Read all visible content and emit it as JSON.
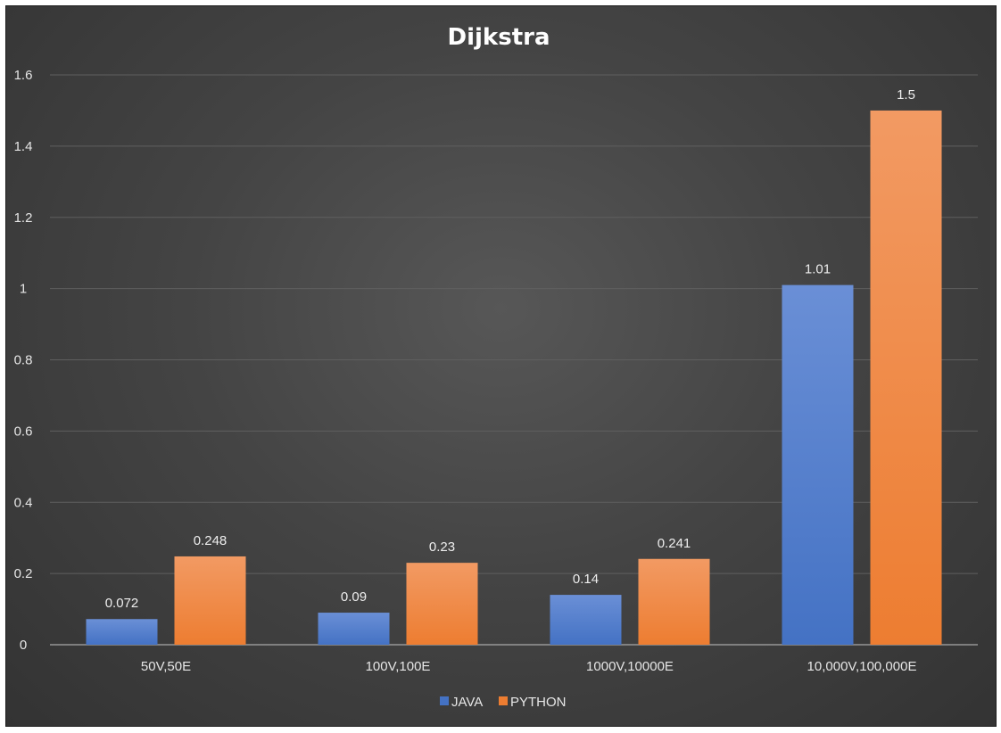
{
  "chart_data": {
    "type": "bar",
    "title": "Dijkstra",
    "xlabel": "",
    "ylabel": "",
    "categories": [
      "50V,50E",
      "100V,100E",
      "1000V,10000E",
      "10,000V,100,000E"
    ],
    "series": [
      {
        "name": "JAVA",
        "values": [
          0.072,
          0.09,
          0.14,
          1.01
        ],
        "color": "#4472c4"
      },
      {
        "name": "PYTHON",
        "values": [
          0.248,
          0.23,
          0.241,
          1.5
        ],
        "color": "#ed7d31"
      }
    ],
    "data_labels": [
      [
        "0.072",
        "0.09",
        "0.14",
        "1.01"
      ],
      [
        "0.248",
        "0.23",
        "0.241",
        "1.5"
      ]
    ],
    "ylim": [
      0,
      1.6
    ],
    "yticks": [
      "0",
      "0.2",
      "0.4",
      "0.6",
      "0.8",
      "1",
      "1.2",
      "1.4",
      "1.6"
    ],
    "grid": true,
    "legend_position": "bottom"
  }
}
